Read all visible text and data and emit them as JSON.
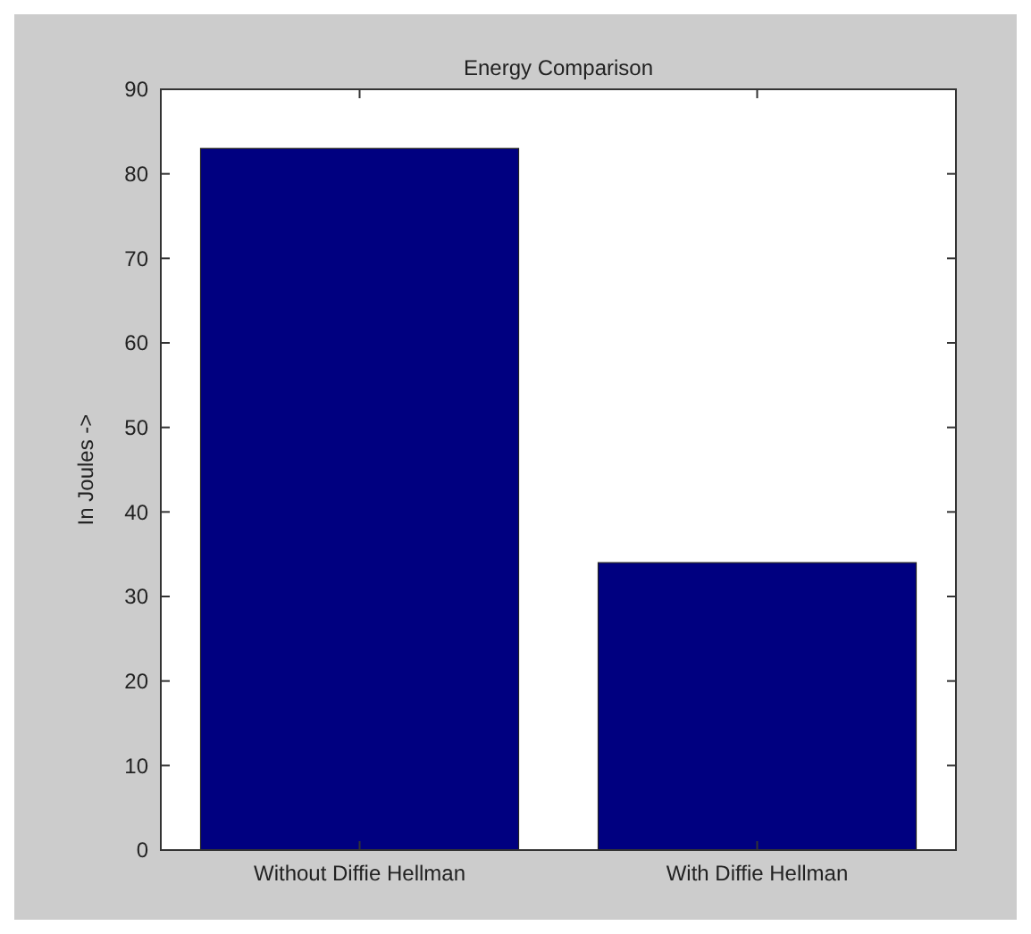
{
  "chart_data": {
    "type": "bar",
    "title": "Energy Comparison",
    "ylabel": "In Joules ->",
    "categories": [
      "Without Diffie Hellman",
      "With Diffie Hellman"
    ],
    "values": [
      83,
      34
    ],
    "color": "#000080",
    "ylim": [
      0,
      90
    ],
    "yticks": [
      0,
      10,
      20,
      30,
      40,
      50,
      60,
      70,
      80,
      90
    ],
    "grid": false
  }
}
